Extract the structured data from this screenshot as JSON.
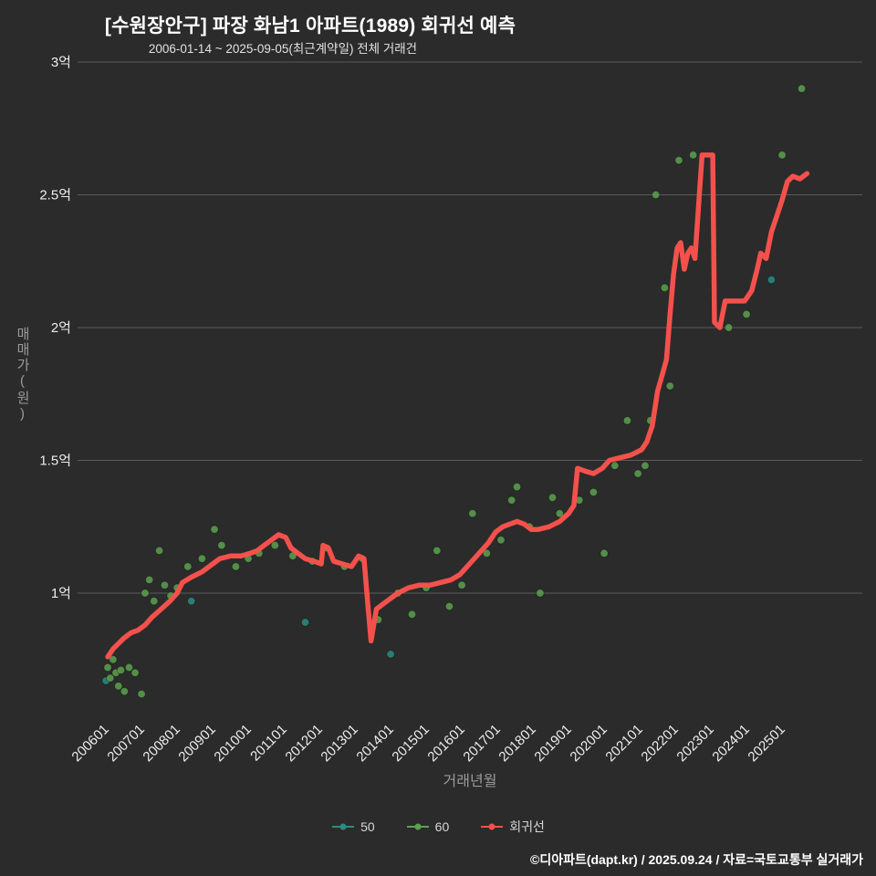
{
  "page": {
    "title": "[수원장안구] 파장 화남1 아파트(1989) 회귀선 예측",
    "subtitle": "2006-01-14 ~ 2025-09-05(최근계약일) 전체 거래건",
    "footer": "©디아파트(dapt.kr) / 2025.09.24 / 자료=국토교통부 실거래가"
  },
  "colors": {
    "background": "#2b2b2b",
    "title": "#ffffff",
    "grid": "#5b5b5b",
    "tick": "#ededed",
    "axis_title": "#9a9a9a",
    "series_50": "#2e8b80",
    "series_60": "#5da051",
    "regression": "#f4514c"
  },
  "chart_data": {
    "type": "scatter",
    "title": "[수원장안구] 파장 화남1 아파트(1989) 회귀선 예측",
    "subtitle": "2006-01-14 ~ 2025-09-05(최근계약일) 전체 거래건",
    "xlabel": "거래년월",
    "ylabel": "매매가(원)",
    "legend_position": "bottom",
    "grid": true,
    "xlim": [
      2005.5,
      2026.1
    ],
    "ylim": [
      0.55,
      3.05
    ],
    "x_ticks": [
      "200601",
      "200701",
      "200801",
      "200901",
      "201001",
      "201101",
      "201201",
      "201301",
      "201401",
      "201501",
      "201601",
      "201701",
      "201801",
      "201901",
      "202001",
      "202101",
      "202201",
      "202301",
      "202401",
      "202501"
    ],
    "y_ticks": [
      {
        "label": "3억",
        "value": 3.0
      },
      {
        "label": "2.5억",
        "value": 2.5
      },
      {
        "label": "2억",
        "value": 2.0
      },
      {
        "label": "1.5억",
        "value": 1.5
      },
      {
        "label": "1억",
        "value": 1.0
      }
    ],
    "y_unit_eok": true,
    "series": [
      {
        "name": "50",
        "type": "scatter",
        "color_key": "series_50",
        "points": [
          [
            2005.9,
            0.67
          ],
          [
            2008.3,
            0.97
          ],
          [
            2011.5,
            0.89
          ],
          [
            2013.9,
            0.77
          ],
          [
            2024.6,
            2.18
          ]
        ]
      },
      {
        "name": "60",
        "type": "scatter",
        "color_key": "series_60",
        "points": [
          [
            2005.95,
            0.72
          ],
          [
            2006.02,
            0.68
          ],
          [
            2006.1,
            0.75
          ],
          [
            2006.18,
            0.7
          ],
          [
            2006.25,
            0.65
          ],
          [
            2006.32,
            0.71
          ],
          [
            2006.42,
            0.63
          ],
          [
            2006.55,
            0.72
          ],
          [
            2006.72,
            0.7
          ],
          [
            2006.9,
            0.62
          ],
          [
            2007.0,
            1.0
          ],
          [
            2007.12,
            1.05
          ],
          [
            2007.25,
            0.97
          ],
          [
            2007.4,
            1.16
          ],
          [
            2007.55,
            1.03
          ],
          [
            2007.72,
            0.99
          ],
          [
            2007.9,
            1.02
          ],
          [
            2008.2,
            1.1
          ],
          [
            2008.6,
            1.13
          ],
          [
            2008.95,
            1.24
          ],
          [
            2009.15,
            1.18
          ],
          [
            2009.55,
            1.1
          ],
          [
            2009.9,
            1.13
          ],
          [
            2010.2,
            1.15
          ],
          [
            2010.65,
            1.18
          ],
          [
            2011.15,
            1.14
          ],
          [
            2011.7,
            1.12
          ],
          [
            2012.1,
            1.17
          ],
          [
            2012.6,
            1.1
          ],
          [
            2013.1,
            1.13
          ],
          [
            2013.55,
            0.9
          ],
          [
            2014.1,
            1.0
          ],
          [
            2014.5,
            0.92
          ],
          [
            2014.9,
            1.02
          ],
          [
            2015.2,
            1.16
          ],
          [
            2015.55,
            0.95
          ],
          [
            2015.9,
            1.03
          ],
          [
            2016.2,
            1.3
          ],
          [
            2016.6,
            1.15
          ],
          [
            2017.0,
            1.2
          ],
          [
            2017.3,
            1.35
          ],
          [
            2017.45,
            1.4
          ],
          [
            2017.8,
            1.25
          ],
          [
            2018.1,
            1.0
          ],
          [
            2018.45,
            1.36
          ],
          [
            2018.65,
            1.3
          ],
          [
            2019.2,
            1.35
          ],
          [
            2019.6,
            1.38
          ],
          [
            2019.9,
            1.15
          ],
          [
            2020.2,
            1.48
          ],
          [
            2020.55,
            1.65
          ],
          [
            2020.85,
            1.45
          ],
          [
            2021.05,
            1.48
          ],
          [
            2021.2,
            1.65
          ],
          [
            2021.35,
            2.5
          ],
          [
            2021.6,
            2.15
          ],
          [
            2021.75,
            1.78
          ],
          [
            2022.0,
            2.63
          ],
          [
            2022.4,
            2.65
          ],
          [
            2023.4,
            2.0
          ],
          [
            2023.9,
            2.05
          ],
          [
            2024.9,
            2.65
          ],
          [
            2025.45,
            2.9
          ]
        ]
      },
      {
        "name": "회귀선",
        "type": "line",
        "color_key": "regression",
        "points": [
          [
            2005.95,
            0.76
          ],
          [
            2006.1,
            0.79
          ],
          [
            2006.25,
            0.81
          ],
          [
            2006.4,
            0.83
          ],
          [
            2006.6,
            0.85
          ],
          [
            2006.8,
            0.86
          ],
          [
            2007.0,
            0.88
          ],
          [
            2007.2,
            0.91
          ],
          [
            2007.45,
            0.94
          ],
          [
            2007.7,
            0.97
          ],
          [
            2007.9,
            1.0
          ],
          [
            2008.05,
            1.04
          ],
          [
            2008.3,
            1.06
          ],
          [
            2008.6,
            1.08
          ],
          [
            2008.9,
            1.11
          ],
          [
            2009.1,
            1.13
          ],
          [
            2009.4,
            1.14
          ],
          [
            2009.7,
            1.14
          ],
          [
            2009.95,
            1.15
          ],
          [
            2010.15,
            1.16
          ],
          [
            2010.35,
            1.18
          ],
          [
            2010.55,
            1.2
          ],
          [
            2010.75,
            1.22
          ],
          [
            2010.95,
            1.21
          ],
          [
            2011.1,
            1.17
          ],
          [
            2011.3,
            1.15
          ],
          [
            2011.5,
            1.13
          ],
          [
            2011.75,
            1.12
          ],
          [
            2011.95,
            1.11
          ],
          [
            2012.0,
            1.18
          ],
          [
            2012.15,
            1.17
          ],
          [
            2012.3,
            1.12
          ],
          [
            2012.55,
            1.11
          ],
          [
            2012.8,
            1.1
          ],
          [
            2013.0,
            1.14
          ],
          [
            2013.15,
            1.13
          ],
          [
            2013.25,
            0.97
          ],
          [
            2013.35,
            0.82
          ],
          [
            2013.5,
            0.94
          ],
          [
            2013.7,
            0.96
          ],
          [
            2013.9,
            0.98
          ],
          [
            2014.1,
            1.0
          ],
          [
            2014.4,
            1.02
          ],
          [
            2014.7,
            1.03
          ],
          [
            2015.0,
            1.03
          ],
          [
            2015.3,
            1.04
          ],
          [
            2015.6,
            1.05
          ],
          [
            2015.85,
            1.07
          ],
          [
            2016.05,
            1.1
          ],
          [
            2016.25,
            1.13
          ],
          [
            2016.45,
            1.16
          ],
          [
            2016.65,
            1.19
          ],
          [
            2016.85,
            1.23
          ],
          [
            2017.05,
            1.25
          ],
          [
            2017.25,
            1.26
          ],
          [
            2017.45,
            1.27
          ],
          [
            2017.65,
            1.26
          ],
          [
            2017.85,
            1.24
          ],
          [
            2018.05,
            1.24
          ],
          [
            2018.35,
            1.25
          ],
          [
            2018.65,
            1.27
          ],
          [
            2018.9,
            1.3
          ],
          [
            2019.05,
            1.33
          ],
          [
            2019.15,
            1.47
          ],
          [
            2019.35,
            1.46
          ],
          [
            2019.6,
            1.45
          ],
          [
            2019.85,
            1.47
          ],
          [
            2020.05,
            1.5
          ],
          [
            2020.35,
            1.51
          ],
          [
            2020.65,
            1.52
          ],
          [
            2020.95,
            1.54
          ],
          [
            2021.1,
            1.57
          ],
          [
            2021.25,
            1.63
          ],
          [
            2021.4,
            1.76
          ],
          [
            2021.55,
            1.83
          ],
          [
            2021.65,
            1.88
          ],
          [
            2021.75,
            2.05
          ],
          [
            2021.85,
            2.2
          ],
          [
            2021.95,
            2.3
          ],
          [
            2022.05,
            2.32
          ],
          [
            2022.15,
            2.22
          ],
          [
            2022.25,
            2.28
          ],
          [
            2022.35,
            2.3
          ],
          [
            2022.45,
            2.26
          ],
          [
            2022.55,
            2.45
          ],
          [
            2022.65,
            2.65
          ],
          [
            2022.95,
            2.65
          ],
          [
            2023.0,
            2.02
          ],
          [
            2023.15,
            2.0
          ],
          [
            2023.3,
            2.1
          ],
          [
            2023.6,
            2.1
          ],
          [
            2023.85,
            2.1
          ],
          [
            2024.05,
            2.14
          ],
          [
            2024.2,
            2.22
          ],
          [
            2024.3,
            2.28
          ],
          [
            2024.45,
            2.26
          ],
          [
            2024.6,
            2.36
          ],
          [
            2024.75,
            2.42
          ],
          [
            2024.9,
            2.48
          ],
          [
            2025.05,
            2.55
          ],
          [
            2025.2,
            2.57
          ],
          [
            2025.4,
            2.56
          ],
          [
            2025.6,
            2.58
          ]
        ]
      }
    ]
  }
}
